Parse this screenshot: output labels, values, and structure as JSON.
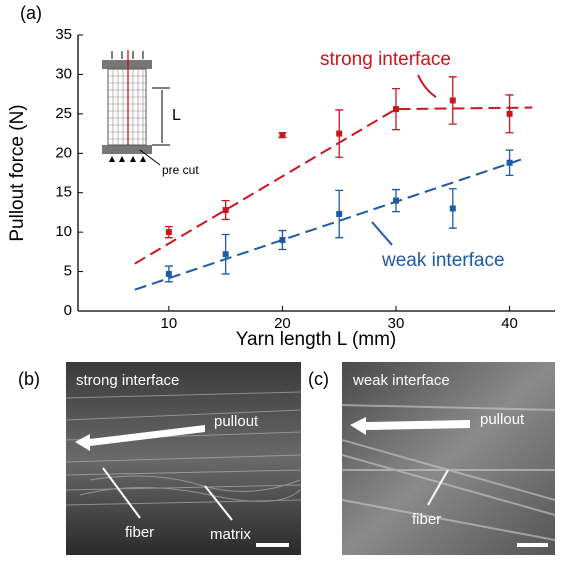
{
  "chart_data": {
    "type": "scatter",
    "panel_label": "(a)",
    "xlabel": "Yarn length L (mm)",
    "ylabel": "Pullout force (N)",
    "x": [
      10,
      15,
      20,
      25,
      30,
      35,
      40
    ],
    "series": [
      {
        "name": "strong interface",
        "color": "#c8161d",
        "values": [
          10,
          12.8,
          22.3,
          22.5,
          25.6,
          26.7,
          25.0
        ],
        "errors": [
          0.7,
          1.2,
          0.3,
          3,
          2.6,
          3,
          2.4
        ],
        "fit": {
          "x": [
            7,
            30,
            42
          ],
          "values": [
            6,
            25.6,
            25.8
          ]
        }
      },
      {
        "name": "weak interface",
        "color": "#1f5aa6",
        "values": [
          4.7,
          7.2,
          9,
          12.3,
          14,
          13,
          18.8
        ],
        "errors": [
          1,
          2.5,
          1.2,
          3,
          1.4,
          2.5,
          1.6
        ],
        "fit": {
          "x": [
            7,
            41
          ],
          "values": [
            2.7,
            19.2
          ]
        }
      }
    ],
    "xlim": [
      2,
      44
    ],
    "xticks": [
      10,
      20,
      30,
      40
    ],
    "ylim": [
      0,
      35
    ],
    "yticks": [
      0,
      5,
      10,
      15,
      20,
      25,
      30,
      35
    ],
    "inset": {
      "dimension_label": "L",
      "note": "pre cut"
    }
  },
  "panels": [
    {
      "label": "(b)",
      "caption": "strong interface",
      "arrow_label": "pullout",
      "labels": [
        "fiber",
        "matrix"
      ]
    },
    {
      "label": "(c)",
      "caption": "weak interface",
      "arrow_label": "pullout",
      "labels": [
        "fiber"
      ]
    }
  ]
}
